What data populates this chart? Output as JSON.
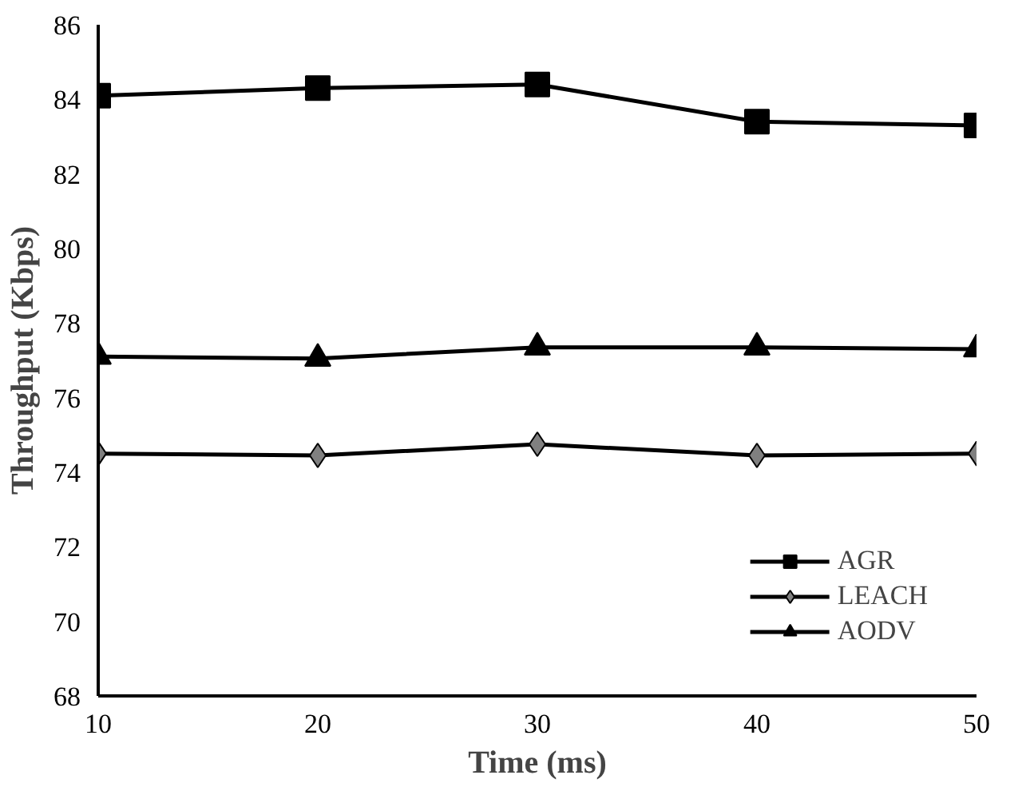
{
  "chart_data": {
    "type": "line",
    "xlabel": "Time (ms)",
    "ylabel": "Throughput (Kbps)",
    "x": [
      10,
      20,
      30,
      40,
      50
    ],
    "xlim": [
      10,
      50
    ],
    "xticks": [
      10,
      20,
      30,
      40,
      50
    ],
    "ylim": [
      68,
      86
    ],
    "yticks": [
      68,
      70,
      72,
      74,
      76,
      78,
      80,
      82,
      84,
      86
    ],
    "grid": false,
    "legend": "bottom right",
    "line_style": "solid",
    "series": [
      {
        "name": "AGR",
        "color": "#000000",
        "marker": "square",
        "values": [
          84.1,
          84.3,
          84.4,
          83.4,
          83.3
        ]
      },
      {
        "name": "LEACH",
        "color": "#808080",
        "marker": "diamond",
        "values": [
          74.5,
          74.45,
          74.75,
          74.45,
          74.5
        ]
      },
      {
        "name": "AODV",
        "color": "#000000",
        "marker": "triangle",
        "values": [
          77.1,
          77.05,
          77.35,
          77.35,
          77.3
        ]
      }
    ]
  }
}
